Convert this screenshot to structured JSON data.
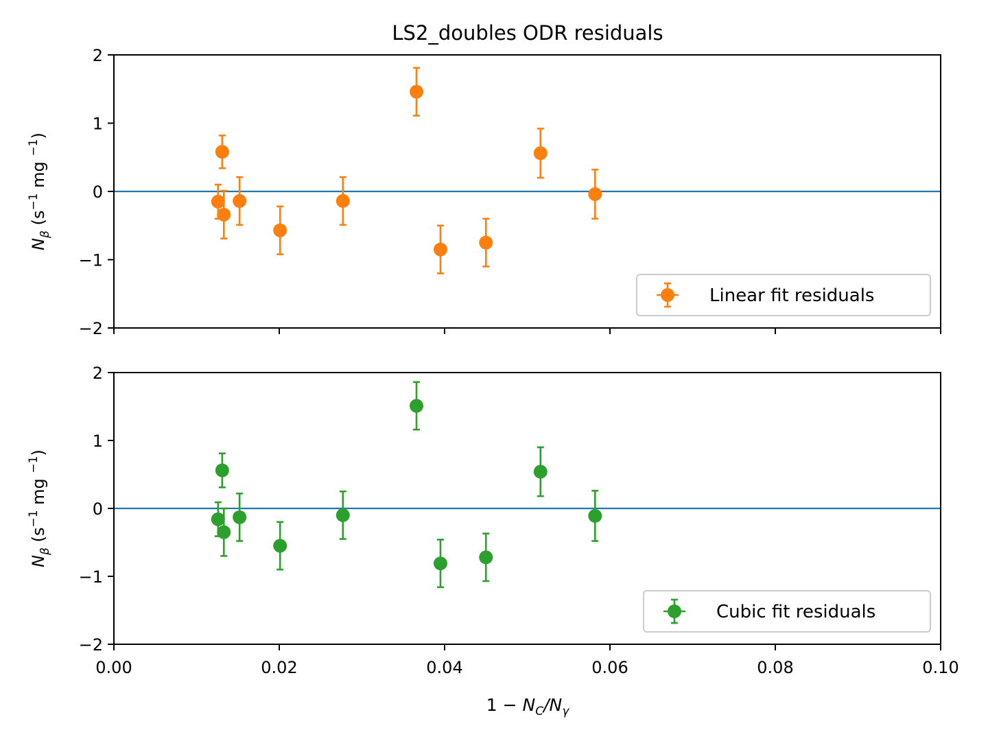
{
  "title": "LS2_doubles ODR residuals",
  "xlabel": {
    "main": "1 − ",
    "n": "N",
    "c": "C",
    "slash": "/",
    "n2": "N",
    "g": "γ"
  },
  "ylabel": {
    "n": "N",
    "beta": "β",
    "a": " (s",
    "e1": "−1",
    "b": " mg ",
    "e2": "−1",
    "c": ")"
  },
  "colors": {
    "linear": "#ff7f0e",
    "cubic": "#2ca02c",
    "zero_line": "#1f77b4"
  },
  "chart_data": [
    {
      "type": "scatter",
      "name": "linear",
      "legend": "Linear fit residuals",
      "legend_position": "lower-right",
      "xlim": [
        0.0,
        0.1
      ],
      "ylim": [
        -2,
        2
      ],
      "xticks": [
        "0.00",
        "0.02",
        "0.04",
        "0.06",
        "0.08",
        "0.10"
      ],
      "show_xtick_labels": false,
      "yticks": [
        "−2",
        "−1",
        "0",
        "1",
        "2"
      ],
      "x": [
        0.0126,
        0.0131,
        0.0133,
        0.0152,
        0.0201,
        0.0277,
        0.0366,
        0.0395,
        0.045,
        0.0516,
        0.0582
      ],
      "y": [
        -0.15,
        0.58,
        -0.34,
        -0.14,
        -0.57,
        -0.14,
        1.46,
        -0.85,
        -0.75,
        0.56,
        -0.04
      ],
      "yerr": [
        0.25,
        0.24,
        0.35,
        0.35,
        0.35,
        0.35,
        0.35,
        0.35,
        0.35,
        0.36,
        0.36
      ]
    },
    {
      "type": "scatter",
      "name": "cubic",
      "legend": "Cubic fit residuals",
      "legend_position": "lower-right",
      "xlim": [
        0.0,
        0.1
      ],
      "ylim": [
        -2,
        2
      ],
      "xticks": [
        "0.00",
        "0.02",
        "0.04",
        "0.06",
        "0.08",
        "0.10"
      ],
      "show_xtick_labels": true,
      "yticks": [
        "−2",
        "−1",
        "0",
        "1",
        "2"
      ],
      "x": [
        0.0126,
        0.0131,
        0.0133,
        0.0152,
        0.0201,
        0.0277,
        0.0366,
        0.0395,
        0.045,
        0.0516,
        0.0582
      ],
      "y": [
        -0.16,
        0.56,
        -0.35,
        -0.13,
        -0.55,
        -0.1,
        1.51,
        -0.81,
        -0.72,
        0.54,
        -0.11
      ],
      "yerr": [
        0.25,
        0.25,
        0.35,
        0.35,
        0.35,
        0.35,
        0.35,
        0.35,
        0.35,
        0.36,
        0.37
      ]
    }
  ]
}
